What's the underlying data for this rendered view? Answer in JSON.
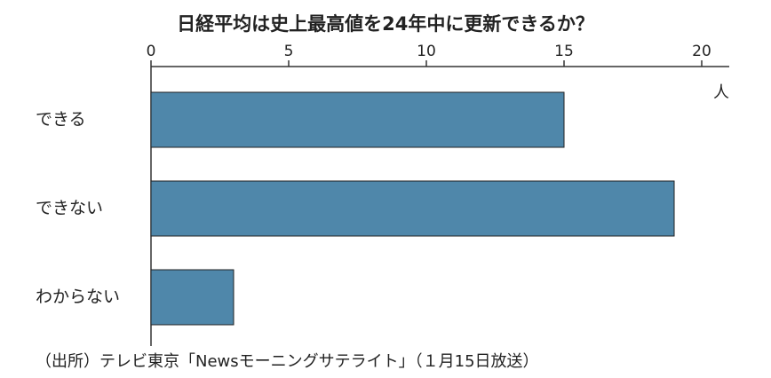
{
  "chart_data": {
    "type": "barh",
    "title": "日経平均は史上最高値を24年中に更新できるか？",
    "categories": [
      "できる",
      "できない",
      "わからない"
    ],
    "values": [
      15,
      19,
      3
    ],
    "color": "#4f87aa",
    "xlim": [
      0,
      21
    ],
    "xticks": [
      0,
      5,
      10,
      15,
      20
    ],
    "xlabel": "人",
    "source": "（出所）テレビ東京「Newsモーニングサテライト」（１月15日放送）"
  }
}
